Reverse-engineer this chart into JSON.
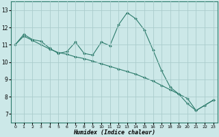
{
  "xlabel": "Humidex (Indice chaleur)",
  "background_color": "#cce8e8",
  "grid_color": "#aacccc",
  "line_color": "#2a7a6a",
  "marker_color": "#2a7a6a",
  "xlim": [
    -0.5,
    23.5
  ],
  "ylim": [
    6.5,
    13.5
  ],
  "xticks": [
    0,
    1,
    2,
    3,
    4,
    5,
    6,
    7,
    8,
    9,
    10,
    11,
    12,
    13,
    14,
    15,
    16,
    17,
    18,
    19,
    20,
    21,
    22,
    23
  ],
  "yticks": [
    7,
    8,
    9,
    10,
    11,
    12,
    13
  ],
  "series": [
    {
      "x": [
        0,
        1,
        2,
        3,
        4,
        5,
        6,
        7,
        8,
        9,
        10,
        11,
        12,
        13,
        14,
        15,
        16,
        17,
        18,
        19,
        20,
        21,
        22,
        23
      ],
      "y": [
        11.0,
        11.6,
        11.3,
        11.2,
        10.8,
        10.5,
        10.6,
        11.15,
        10.5,
        10.4,
        11.15,
        10.95,
        12.15,
        12.85,
        12.5,
        11.85,
        10.7,
        9.5,
        8.55,
        8.15,
        7.6,
        7.2,
        7.5,
        7.8
      ]
    },
    {
      "x": [
        0,
        1,
        2,
        3,
        4,
        5,
        6,
        7,
        8,
        9,
        10,
        11,
        12,
        13,
        14,
        15,
        16,
        17,
        18,
        19,
        20,
        21,
        22,
        23
      ],
      "y": [
        11.0,
        11.5,
        11.25,
        11.0,
        10.75,
        10.55,
        10.45,
        10.3,
        10.2,
        10.05,
        9.9,
        9.75,
        9.6,
        9.45,
        9.3,
        9.1,
        8.9,
        8.65,
        8.4,
        8.15,
        7.9,
        7.2,
        7.5,
        7.8
      ]
    }
  ]
}
